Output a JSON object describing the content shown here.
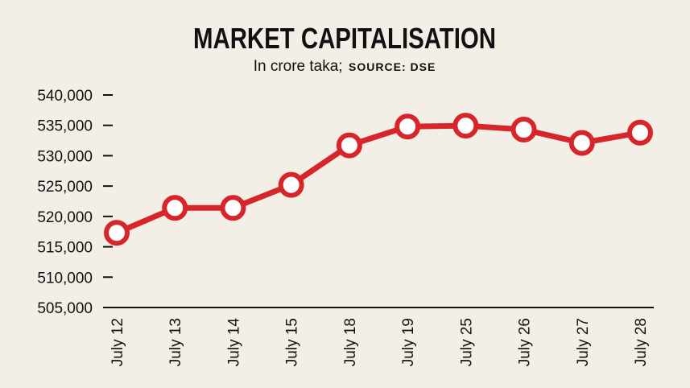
{
  "chart_data": {
    "type": "line",
    "title": "MARKET CAPITALISATION",
    "subtitle": "In crore taka;",
    "source": "SOURCE: DSE",
    "categories": [
      "July 12",
      "July 13",
      "July 14",
      "July 15",
      "July 18",
      "July 19",
      "July 25",
      "July 26",
      "July 27",
      "July 28"
    ],
    "values": [
      517300,
      521400,
      521400,
      525200,
      531700,
      534800,
      534950,
      534300,
      532100,
      533800
    ],
    "ylim": [
      505000,
      540000
    ],
    "yticks": [
      505000,
      510000,
      515000,
      520000,
      525000,
      530000,
      535000,
      540000
    ],
    "ytick_labels": [
      "505,000",
      "510,000",
      "515,000",
      "520,000",
      "525,000",
      "530,000",
      "535,000",
      "540,000"
    ],
    "grid": false,
    "line_color": "#d6262b",
    "marker_fill": "#ffffff",
    "background": "#f3efe6"
  }
}
